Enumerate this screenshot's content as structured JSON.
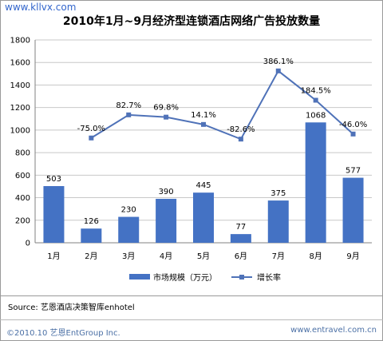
{
  "watermark": "www.kllvx.com",
  "source_text": "Source: 艺恩酒店决策智库enhotel",
  "footer": {
    "left": "©2010.10 艺恩EntGroup Inc.",
    "right": "www.entravel.com.cn"
  },
  "colors": {
    "bar": "#4472c4",
    "line": "#4f72b8",
    "grid": "#c8c8c8"
  },
  "chart_data": {
    "type": "bar",
    "title": "2010年1月~9月经济型连锁酒店网络广告投放数量",
    "categories": [
      "1月",
      "2月",
      "3月",
      "4月",
      "5月",
      "6月",
      "7月",
      "8月",
      "9月"
    ],
    "ylim": [
      0,
      1800
    ],
    "yticks": [
      0,
      200,
      400,
      600,
      800,
      1000,
      1200,
      1400,
      1600,
      1800
    ],
    "grid": true,
    "legend_position": "bottom",
    "series": [
      {
        "name": "市场规模（万元）",
        "type": "bar",
        "values": [
          503,
          126,
          230,
          390,
          445,
          77,
          375,
          1068,
          577
        ],
        "labels": [
          "503",
          "126",
          "230",
          "390",
          "445",
          "77",
          "375",
          "1068",
          "577"
        ]
      },
      {
        "name": "增长率",
        "type": "line",
        "values": [
          null,
          -75.0,
          82.7,
          69.8,
          14.1,
          -82.6,
          386.1,
          184.5,
          -46.0
        ],
        "labels": [
          null,
          "-75.0%",
          "82.7%",
          "69.8%",
          "14.1%",
          "-82.6%",
          "386.1%",
          "184.5%",
          "-46.0%"
        ],
        "plot_y": [
          null,
          930,
          1135,
          1115,
          1050,
          920,
          1525,
          1265,
          965
        ]
      }
    ]
  }
}
